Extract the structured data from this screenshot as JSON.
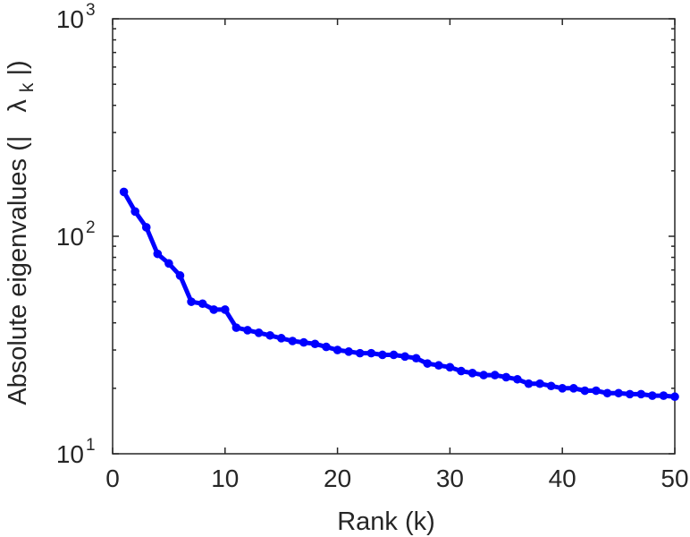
{
  "chart_data": {
    "type": "line",
    "xlabel": "Rank (k)",
    "ylabel_parts": [
      "Absolute eigenvalues (|",
      "λ",
      "k",
      "|)"
    ],
    "xlim": [
      0,
      50
    ],
    "ylim": [
      10,
      1000
    ],
    "yscale": "log",
    "grid": false,
    "legend": "none",
    "x_ticks": [
      {
        "value": 0,
        "label": "0"
      },
      {
        "value": 10,
        "label": "10"
      },
      {
        "value": 20,
        "label": "20"
      },
      {
        "value": 30,
        "label": "30"
      },
      {
        "value": 40,
        "label": "40"
      },
      {
        "value": 50,
        "label": "50"
      }
    ],
    "y_ticks": [
      {
        "value": 10,
        "base": "10",
        "exp": "1"
      },
      {
        "value": 100,
        "base": "10",
        "exp": "2"
      },
      {
        "value": 1000,
        "base": "10",
        "exp": "3"
      }
    ],
    "series": [
      {
        "color": "#0000ff",
        "x": [
          1,
          2,
          3,
          4,
          5,
          6,
          7,
          8,
          9,
          10,
          11,
          12,
          13,
          14,
          15,
          16,
          17,
          18,
          19,
          20,
          21,
          22,
          23,
          24,
          25,
          26,
          27,
          28,
          29,
          30,
          31,
          32,
          33,
          34,
          35,
          36,
          37,
          38,
          39,
          40,
          41,
          42,
          43,
          44,
          45,
          46,
          47,
          48,
          49,
          50
        ],
        "y": [
          160,
          130,
          110,
          83,
          75,
          66,
          50,
          49,
          46,
          46,
          38,
          37,
          36,
          35,
          34,
          33,
          32.5,
          32,
          31,
          30,
          29.5,
          29,
          29,
          28.5,
          28.5,
          28,
          27.5,
          26,
          25.5,
          25,
          24,
          23.5,
          23,
          23,
          22.5,
          22,
          21,
          21,
          20.5,
          20,
          20,
          19.5,
          19.5,
          19,
          19,
          18.8,
          18.8,
          18.5,
          18.5,
          18.3
        ]
      }
    ]
  }
}
